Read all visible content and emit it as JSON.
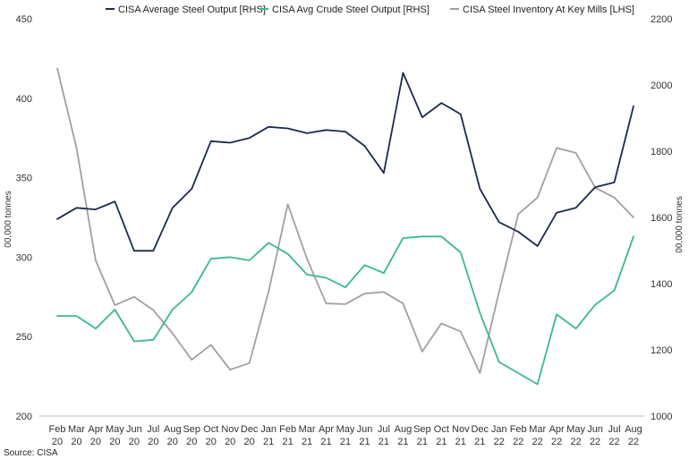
{
  "chart_data": {
    "type": "line",
    "title": "",
    "source": "Source: CISA",
    "y_left_label": "00,000 tonnes",
    "y_right_label": "00,000 tonnes",
    "y_left_range": [
      200,
      450
    ],
    "y_left_ticks": [
      "200",
      "250",
      "300",
      "350",
      "400",
      "450"
    ],
    "y_right_range": [
      1000,
      2200
    ],
    "y_right_ticks": [
      "1000",
      "1200",
      "1400",
      "1600",
      "1800",
      "2000",
      "2200"
    ],
    "grid": false,
    "legend_position": "top",
    "categories": [
      {
        "month": "Feb",
        "year": "20"
      },
      {
        "month": "Mar",
        "year": "20"
      },
      {
        "month": "Apr",
        "year": "20"
      },
      {
        "month": "May",
        "year": "20"
      },
      {
        "month": "Jun",
        "year": "20"
      },
      {
        "month": "Jul",
        "year": "20"
      },
      {
        "month": "Aug",
        "year": "20"
      },
      {
        "month": "Sep",
        "year": "20"
      },
      {
        "month": "Oct",
        "year": "20"
      },
      {
        "month": "Nov",
        "year": "20"
      },
      {
        "month": "Dec",
        "year": "20"
      },
      {
        "month": "Jan",
        "year": "21"
      },
      {
        "month": "Feb",
        "year": "21"
      },
      {
        "month": "Mar",
        "year": "21"
      },
      {
        "month": "Apr",
        "year": "21"
      },
      {
        "month": "May",
        "year": "21"
      },
      {
        "month": "Jun",
        "year": "21"
      },
      {
        "month": "Jul",
        "year": "21"
      },
      {
        "month": "Aug",
        "year": "21"
      },
      {
        "month": "Sep",
        "year": "21"
      },
      {
        "month": "Oct",
        "year": "21"
      },
      {
        "month": "Nov",
        "year": "21"
      },
      {
        "month": "Dec",
        "year": "21"
      },
      {
        "month": "Jan",
        "year": "22"
      },
      {
        "month": "Feb",
        "year": "22"
      },
      {
        "month": "Mar",
        "year": "22"
      },
      {
        "month": "Apr",
        "year": "22"
      },
      {
        "month": "May",
        "year": "22"
      },
      {
        "month": "Jun",
        "year": "22"
      },
      {
        "month": "Jul",
        "year": "22"
      },
      {
        "month": "Aug",
        "year": "22"
      }
    ],
    "series": [
      {
        "name": "CISA Average Steel Output [RHS]",
        "color": "#1b2a4e",
        "axis": "left",
        "values": [
          324,
          331,
          330,
          335,
          304,
          304,
          331,
          343,
          373,
          372,
          375,
          382,
          381,
          378,
          380,
          379,
          370,
          353,
          416,
          388,
          397,
          390,
          343,
          322,
          316,
          307,
          328,
          331,
          344,
          347,
          395
        ]
      },
      {
        "name": "CISA Avg Crude Steel Output [RHS]",
        "color": "#3ab795",
        "axis": "left",
        "values": [
          263,
          263,
          255,
          267,
          247,
          248,
          267,
          278,
          299,
          300,
          298,
          309,
          302,
          289,
          287,
          281,
          295,
          290,
          312,
          313,
          313,
          303,
          265,
          234,
          227,
          220,
          264,
          255,
          270,
          279,
          313
        ]
      },
      {
        "name": "CISA Steel Inventory At Key Mills [LHS]",
        "color": "#a0a0a0",
        "axis": "right",
        "values": [
          2050,
          1810,
          1470,
          1335,
          1360,
          1320,
          1250,
          1170,
          1215,
          1140,
          1160,
          1375,
          1640,
          1475,
          1340,
          1338,
          1370,
          1375,
          1340,
          1195,
          1280,
          1255,
          1130,
          1375,
          1610,
          1660,
          1810,
          1795,
          1690,
          1660,
          1600
        ]
      }
    ]
  }
}
